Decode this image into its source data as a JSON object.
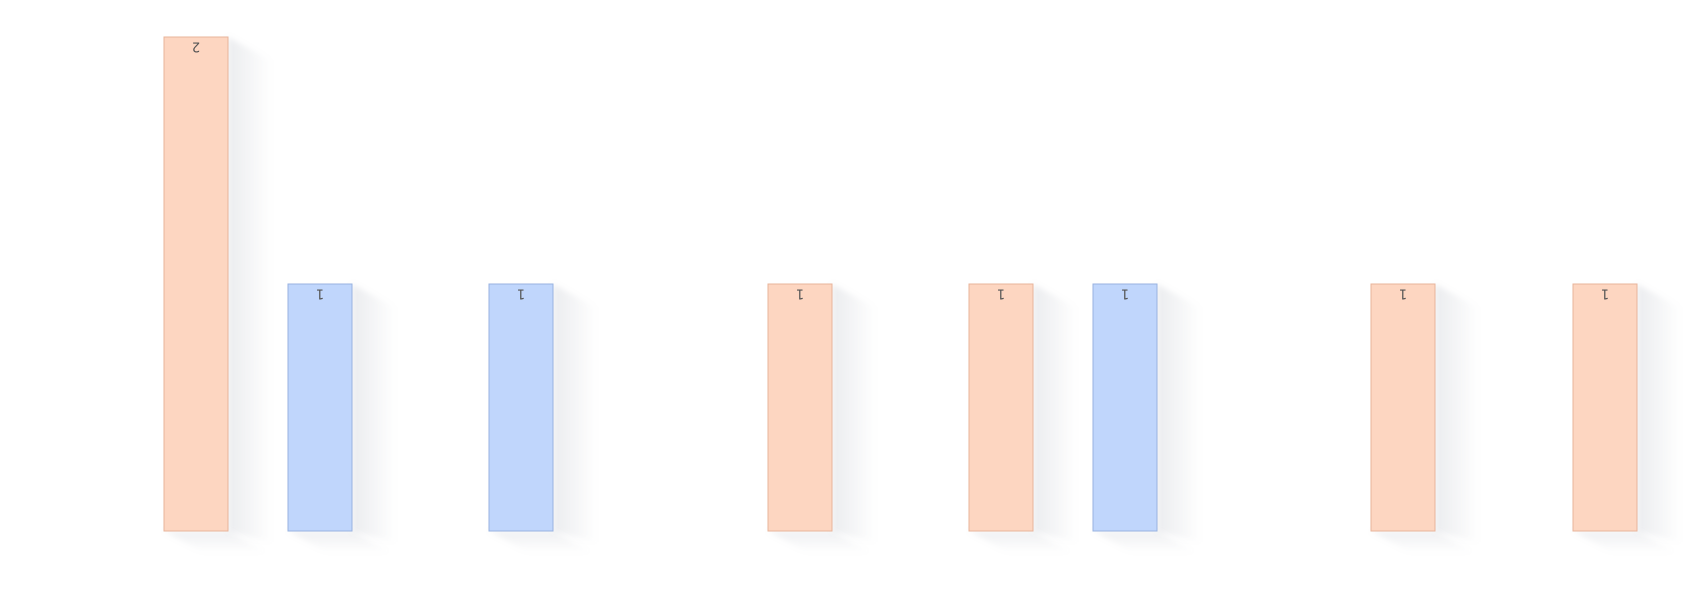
{
  "chart_data": {
    "type": "bar",
    "categories": [
      "",
      "",
      "",
      "",
      "",
      "",
      "",
      ""
    ],
    "series": [
      {
        "values": [
          2,
          1,
          1,
          1,
          1,
          1,
          1,
          1
        ]
      }
    ],
    "bar_colors": [
      "#fdd6c1",
      "#c0d6fc",
      "#c0d6fc",
      "#fdd6c1",
      "#fdd6c1",
      "#c0d6fc",
      "#fdd6c1",
      "#fdd6c1"
    ],
    "bar_border_colors": [
      "#e8b49a",
      "#98b2e0",
      "#98b2e0",
      "#e8b49a",
      "#e8b49a",
      "#98b2e0",
      "#e8b49a",
      "#e8b49a"
    ],
    "data_labels": [
      "2",
      "1",
      "1",
      "1",
      "1",
      "1",
      "1",
      "1"
    ],
    "data_label_rotation": 180,
    "label_color": "#555555",
    "ylim": [
      0,
      2
    ],
    "grid": false,
    "legend": "none",
    "bar_shadow": true
  }
}
